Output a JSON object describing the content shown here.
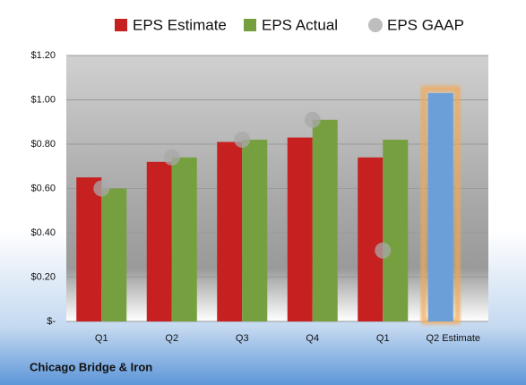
{
  "chart_data": {
    "type": "bar",
    "categories": [
      "Q1",
      "Q2",
      "Q3",
      "Q4",
      "Q1",
      "Q2 Estimate"
    ],
    "series": [
      {
        "name": "EPS Estimate",
        "color": "#c62020",
        "kind": "bar",
        "values": [
          0.65,
          0.72,
          0.81,
          0.83,
          0.74,
          null
        ]
      },
      {
        "name": "EPS Actual",
        "color": "#76a040",
        "kind": "bar",
        "values": [
          0.6,
          0.74,
          0.82,
          0.91,
          0.82,
          null
        ]
      },
      {
        "name": "EPS GAAP",
        "color": "#a8a8a8",
        "kind": "dot",
        "values": [
          0.6,
          0.74,
          0.82,
          0.91,
          0.32,
          null
        ]
      }
    ],
    "estimate_bar": {
      "category": 5,
      "value": 1.03,
      "color": "#6b9fd8",
      "glow": "#f5a850"
    },
    "ylim": [
      0,
      1.2
    ],
    "yticks": [
      {
        "value": 0,
        "label": "$-"
      },
      {
        "value": 0.2,
        "label": "$0.20"
      },
      {
        "value": 0.4,
        "label": "$0.40"
      },
      {
        "value": 0.6,
        "label": "$0.60"
      },
      {
        "value": 0.8,
        "label": "$0.80"
      },
      {
        "value": 1.0,
        "label": "$1.00"
      },
      {
        "value": 1.2,
        "label": "$1.20"
      }
    ],
    "grid": true,
    "footer": "Chicago Bridge & Iron"
  }
}
